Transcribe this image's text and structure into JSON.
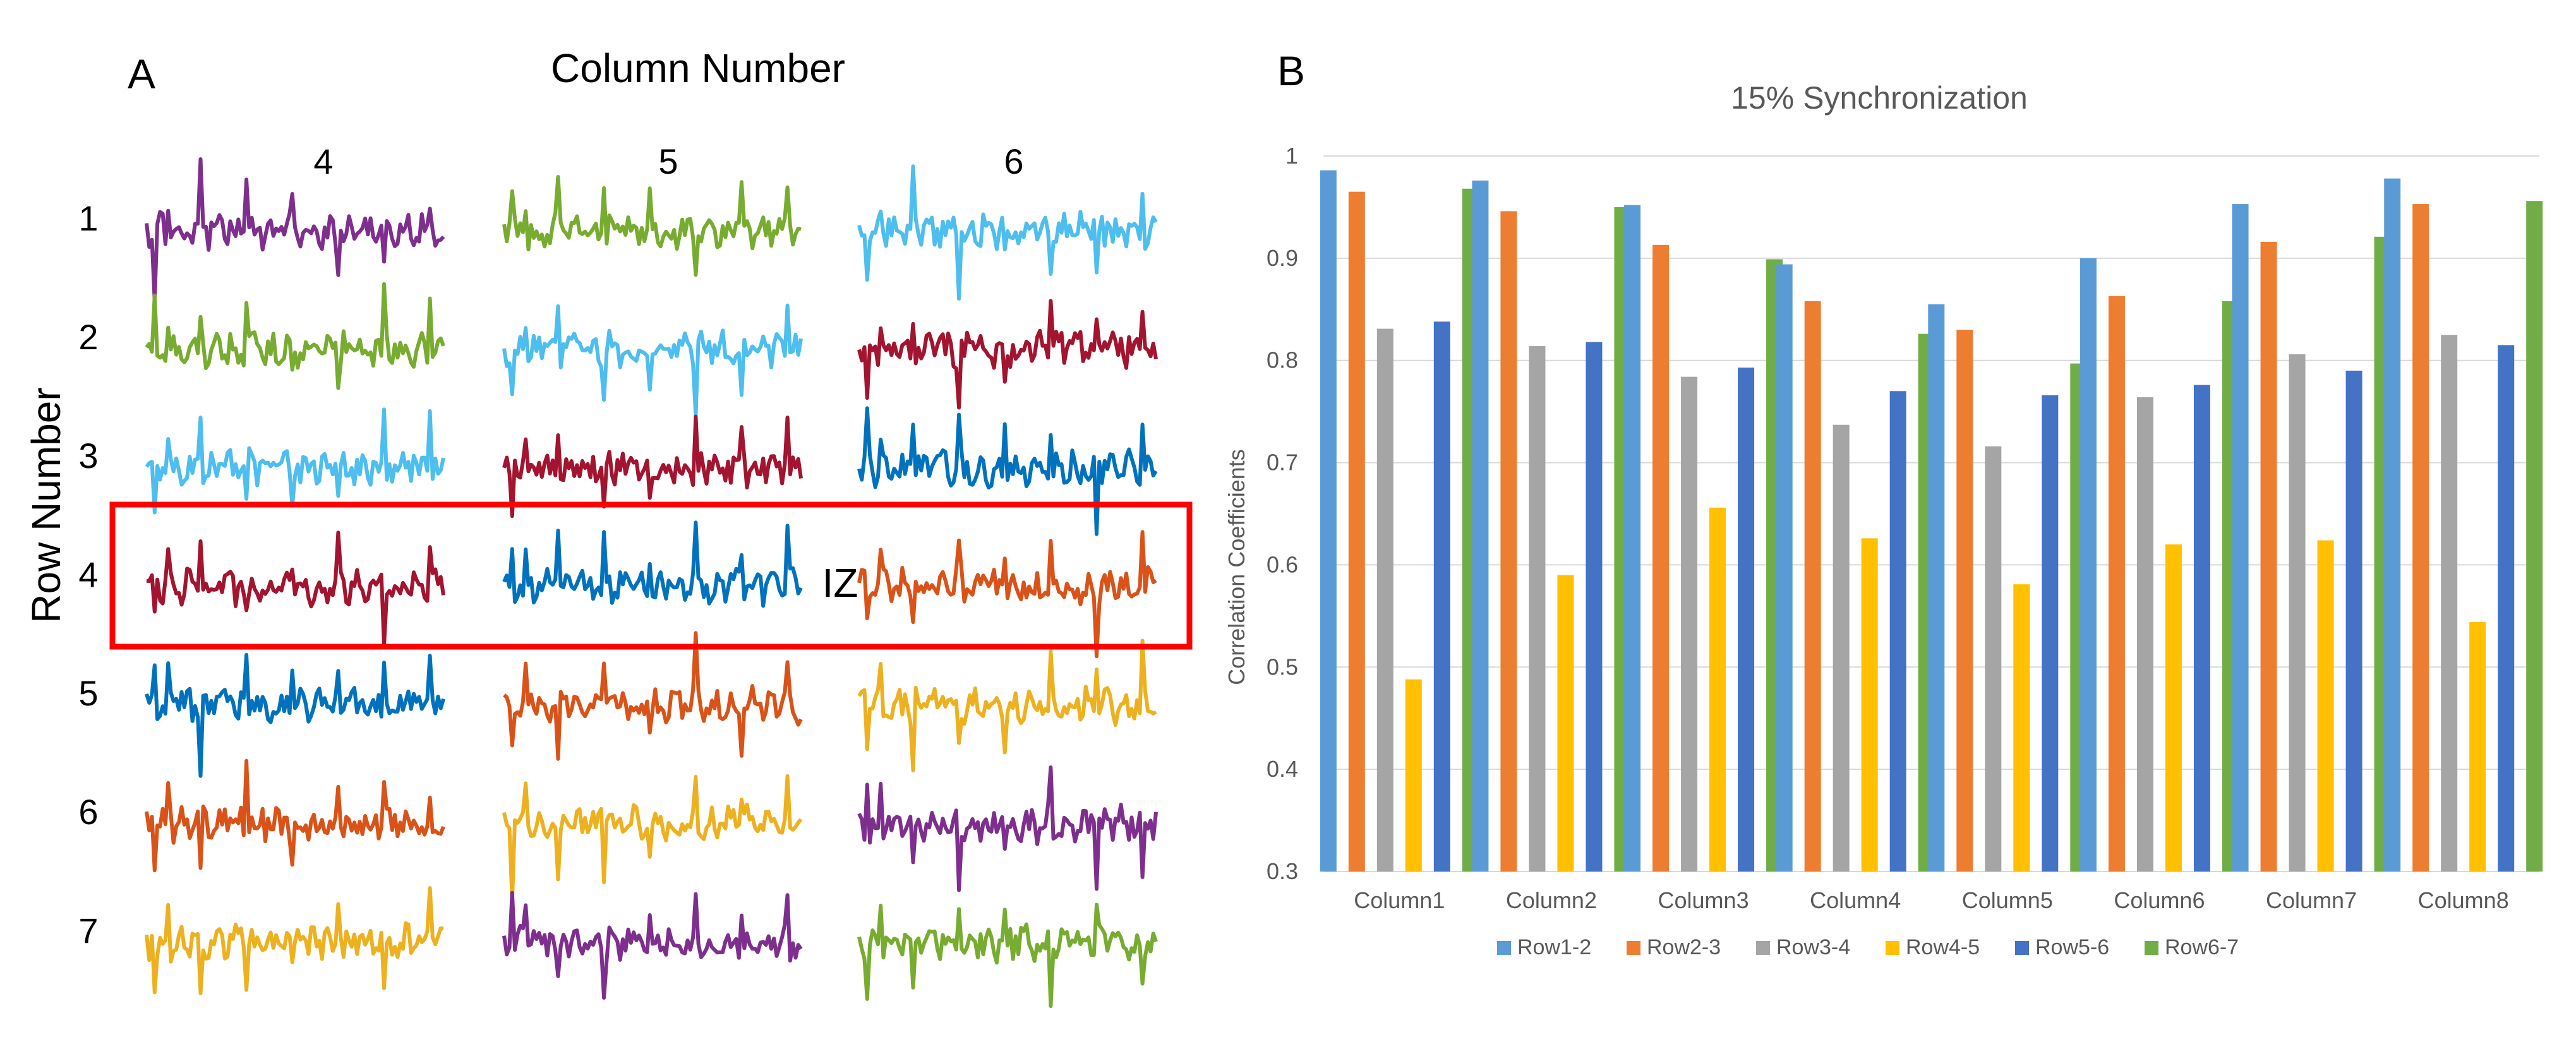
{
  "panel_a": {
    "letter": "A",
    "column_header": "Column Number",
    "row_header": "Row Number",
    "columns": [
      "4",
      "5",
      "6"
    ],
    "rows": [
      "1",
      "2",
      "3",
      "4",
      "5",
      "6",
      "7"
    ],
    "zone_label": "IZ",
    "highlighted_row": "4",
    "zone_box_color": "#ff0000",
    "trace_colors": {
      "c4": [
        "#7e2f8e",
        "#77ac30",
        "#4dbeee",
        "#a2142f",
        "#0072bd",
        "#d95319",
        "#edb120"
      ],
      "c5": [
        "#77ac30",
        "#4dbeee",
        "#a2142f",
        "#0072bd",
        "#d95319",
        "#edb120",
        "#7e2f8e"
      ],
      "c6": [
        "#4dbeee",
        "#a2142f",
        "#0072bd",
        "#d95319",
        "#edb120",
        "#7e2f8e",
        "#77ac30"
      ]
    }
  },
  "panel_b": {
    "letter": "B"
  },
  "chart_data": {
    "type": "bar",
    "title": "15% Synchronization",
    "xlabel": "",
    "ylabel": "Correlation Coefficients",
    "ylim": [
      0.3,
      1
    ],
    "yticks": [
      "0.3",
      "0.4",
      "0.5",
      "0.6",
      "0.7",
      "0.8",
      "0.9",
      "1"
    ],
    "grid": true,
    "legend_position": "bottom",
    "categories": [
      "Column1",
      "Column2",
      "Column3",
      "Column4",
      "Column5",
      "Column6",
      "Column7",
      "Column8"
    ],
    "series": [
      {
        "name": "Row1-2",
        "color": "#5b9bd5",
        "values": [
          0.986,
          0.976,
          0.952,
          0.894,
          0.855,
          0.9,
          0.953,
          0.978
        ]
      },
      {
        "name": "Row2-3",
        "color": "#ed7d31",
        "values": [
          0.965,
          0.946,
          0.913,
          0.858,
          0.83,
          0.863,
          0.916,
          0.953
        ]
      },
      {
        "name": "Row3-4",
        "color": "#a5a5a5",
        "values": [
          0.831,
          0.814,
          0.784,
          0.737,
          0.716,
          0.764,
          0.806,
          0.825
        ]
      },
      {
        "name": "Row4-5",
        "color": "#ffc000",
        "values": [
          0.488,
          0.59,
          0.656,
          0.626,
          0.581,
          0.62,
          0.624,
          0.544
        ]
      },
      {
        "name": "Row5-6",
        "color": "#4472c4",
        "values": [
          0.838,
          0.818,
          0.793,
          0.77,
          0.766,
          0.776,
          0.79,
          0.815
        ]
      },
      {
        "name": "Row6-7",
        "color": "#70ad47",
        "values": [
          0.968,
          0.95,
          0.899,
          0.826,
          0.797,
          0.858,
          0.921,
          0.956
        ]
      }
    ]
  }
}
